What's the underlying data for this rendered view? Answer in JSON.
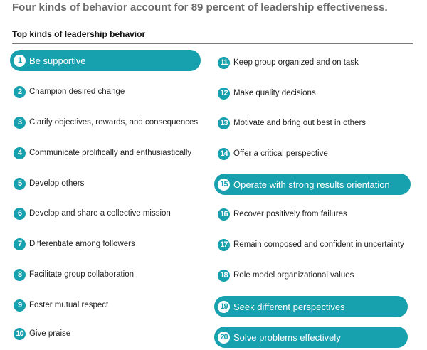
{
  "header": {
    "title": "Four kinds of behavior account for 89 percent of leadership effectiveness.",
    "subtitle": "Top kinds of leadership behavior"
  },
  "accent_color": "#17a0ad",
  "left_items": [
    {
      "num": "1",
      "label": "Be supportive",
      "highlighted": true
    },
    {
      "num": "2",
      "label": "Champion desired change",
      "highlighted": false
    },
    {
      "num": "3",
      "label": "Clarify objectives, rewards, and consequences",
      "highlighted": false
    },
    {
      "num": "4",
      "label": "Communicate prolifically and enthusiastically",
      "highlighted": false
    },
    {
      "num": "5",
      "label": "Develop others",
      "highlighted": false
    },
    {
      "num": "6",
      "label": "Develop and share a collective mission",
      "highlighted": false
    },
    {
      "num": "7",
      "label": "Differentiate among followers",
      "highlighted": false
    },
    {
      "num": "8",
      "label": "Facilitate group collaboration",
      "highlighted": false
    },
    {
      "num": "9",
      "label": "Foster mutual respect",
      "highlighted": false
    },
    {
      "num": "10",
      "label": "Give praise",
      "highlighted": false
    }
  ],
  "right_items": [
    {
      "num": "11",
      "label": "Keep group organized and on task",
      "highlighted": false
    },
    {
      "num": "12",
      "label": "Make quality decisions",
      "highlighted": false
    },
    {
      "num": "13",
      "label": "Motivate and bring out best in others",
      "highlighted": false
    },
    {
      "num": "14",
      "label": "Offer a critical perspective",
      "highlighted": false
    },
    {
      "num": "15",
      "label": "Operate with strong results orientation",
      "highlighted": true
    },
    {
      "num": "16",
      "label": "Recover positively from failures",
      "highlighted": false
    },
    {
      "num": "17",
      "label": "Remain composed and confident in uncertainty",
      "highlighted": false
    },
    {
      "num": "18",
      "label": "Role model organizational values",
      "highlighted": false
    },
    {
      "num": "19",
      "label": "Seek different perspectives",
      "highlighted": true
    },
    {
      "num": "20",
      "label": "Solve problems effectively",
      "highlighted": true
    }
  ]
}
